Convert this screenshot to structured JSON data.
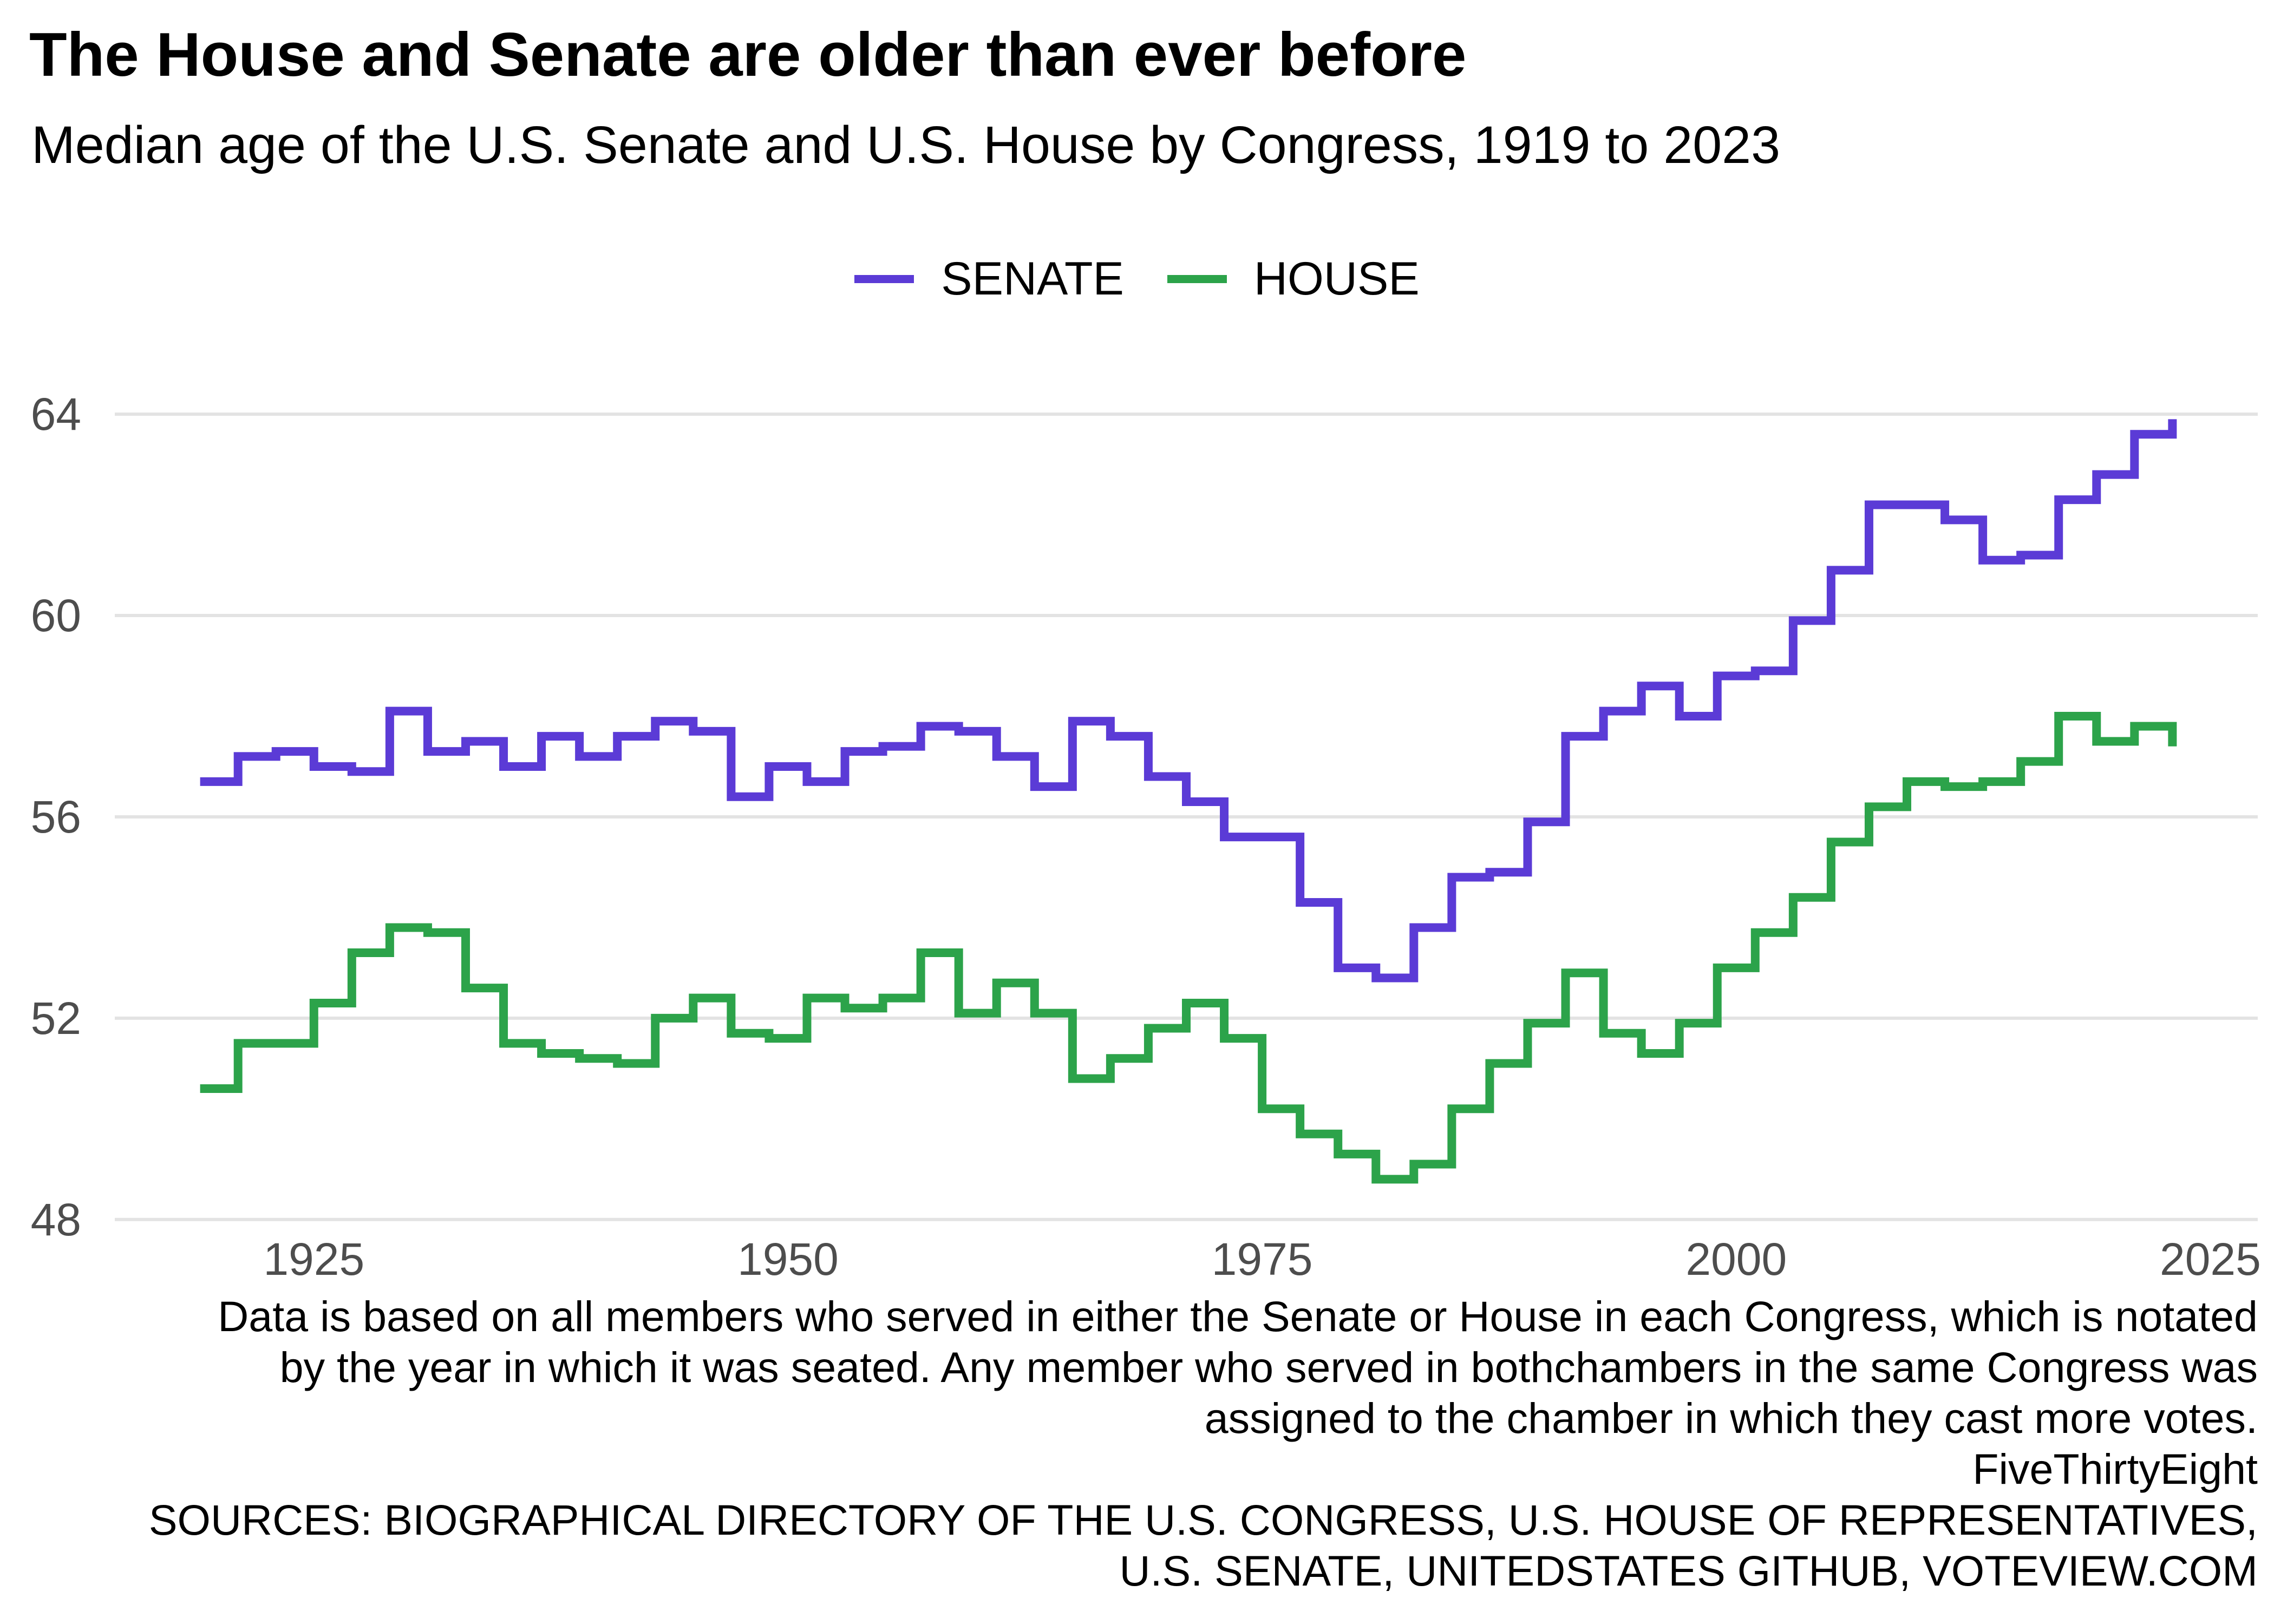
{
  "title": "The House and Senate are older than ever before",
  "subtitle": "Median age of the U.S. Senate and U.S. House by Congress, 1919 to 2023",
  "legend": [
    "SENATE",
    "HOUSE"
  ],
  "colors": {
    "senate": "#5b3bd6",
    "house": "#2ca34a",
    "grid": "#e3e3e3",
    "tick_text": "#4d4d4d"
  },
  "caption": {
    "note_lines": [
      "Data is based on all members who served in either the Senate or House in each Congress, which is notated",
      "by the year in which it was seated. Any member who served in bothchambers in the same Congress was",
      "assigned to the chamber in which they cast more votes."
    ],
    "credit": "FiveThirtyEight",
    "source_lines": [
      "SOURCES: BIOGRAPHICAL DIRECTORY OF THE U.S. CONGRESS, U.S. HOUSE OF REPRESENTATIVES,",
      "U.S. SENATE, UNITEDSTATES GITHUB, VOTEVIEW.COM"
    ]
  },
  "chart_data": {
    "type": "line",
    "step": true,
    "title": "The House and Senate are older than ever before",
    "subtitle": "Median age of the U.S. Senate and U.S. House by Congress, 1919 to 2023",
    "xlabel": "",
    "ylabel": "",
    "xlim": [
      1914.5,
      2027.5
    ],
    "ylim": [
      47.6,
      64.7
    ],
    "x_ticks": [
      1925,
      1950,
      1975,
      2000,
      2025
    ],
    "y_ticks": [
      48,
      52,
      56,
      60,
      64
    ],
    "grid": "horizontal",
    "legend_position": "top-center",
    "x": [
      1919,
      1921,
      1923,
      1925,
      1927,
      1929,
      1931,
      1933,
      1935,
      1937,
      1939,
      1941,
      1943,
      1945,
      1947,
      1949,
      1951,
      1953,
      1955,
      1957,
      1959,
      1961,
      1963,
      1965,
      1967,
      1969,
      1971,
      1973,
      1975,
      1977,
      1979,
      1981,
      1983,
      1985,
      1987,
      1989,
      1991,
      1993,
      1995,
      1997,
      1999,
      2001,
      2003,
      2005,
      2007,
      2009,
      2011,
      2013,
      2015,
      2017,
      2019,
      2021,
      2023
    ],
    "series": [
      {
        "name": "SENATE",
        "values": [
          56.7,
          57.2,
          57.3,
          57.0,
          56.9,
          58.1,
          57.3,
          57.5,
          57.0,
          57.6,
          57.2,
          57.6,
          57.9,
          57.7,
          56.4,
          57.0,
          56.7,
          57.3,
          57.4,
          57.8,
          57.7,
          57.2,
          56.6,
          57.9,
          57.6,
          56.8,
          56.3,
          55.6,
          55.6,
          54.3,
          53.0,
          52.8,
          53.8,
          54.8,
          54.9,
          55.9,
          57.6,
          58.1,
          58.6,
          58.0,
          58.8,
          58.9,
          59.9,
          60.9,
          62.2,
          62.2,
          61.9,
          61.1,
          61.2,
          62.3,
          62.8,
          63.6,
          63.9
        ]
      },
      {
        "name": "HOUSE",
        "values": [
          50.6,
          51.5,
          51.5,
          52.3,
          53.3,
          53.8,
          53.7,
          52.6,
          51.5,
          51.3,
          51.2,
          51.1,
          52.0,
          52.4,
          51.7,
          51.6,
          52.4,
          52.2,
          52.4,
          53.3,
          52.1,
          52.7,
          52.1,
          50.8,
          51.2,
          51.8,
          52.3,
          51.6,
          50.2,
          49.7,
          49.3,
          48.8,
          49.1,
          50.2,
          51.1,
          51.9,
          52.9,
          51.7,
          51.3,
          51.9,
          53.0,
          53.7,
          54.4,
          55.5,
          56.2,
          56.7,
          56.6,
          56.7,
          57.1,
          58.0,
          57.5,
          57.8,
          57.4
        ]
      }
    ]
  }
}
